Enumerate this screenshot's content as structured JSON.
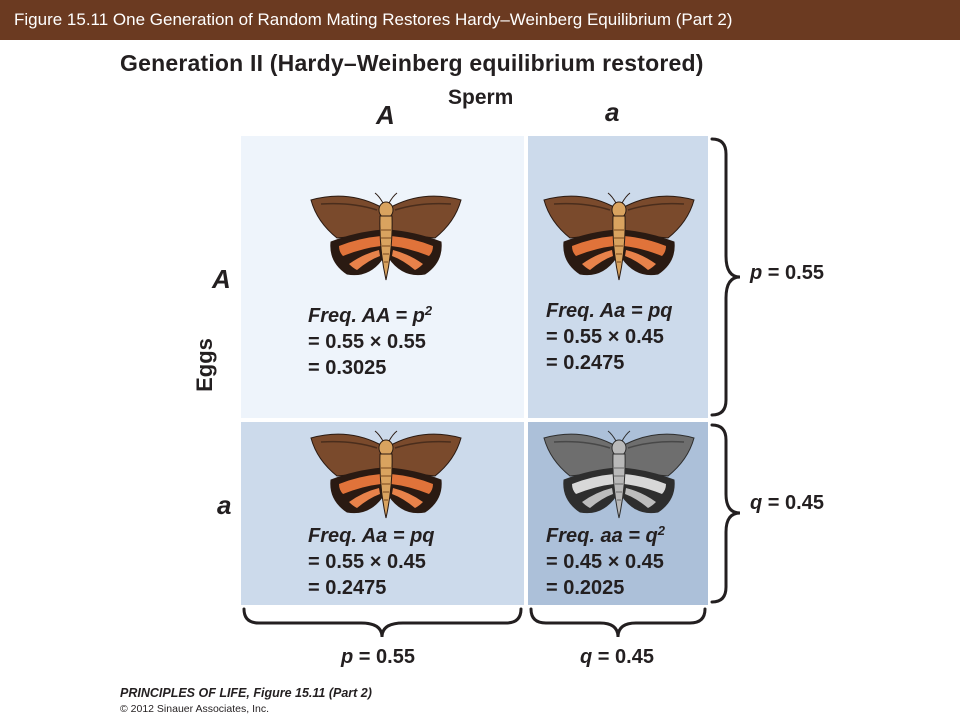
{
  "header": {
    "title": "Figure 15.11  One Generation of Random Mating Restores Hardy–Weinberg Equilibrium (Part 2)"
  },
  "figure": {
    "heading": "Generation II (Hardy–Weinberg equilibrium restored)",
    "sperm_label": "Sperm",
    "eggs_label": "Eggs",
    "sperm_alleles": [
      "A",
      "a"
    ],
    "egg_alleles": [
      "A",
      "a"
    ],
    "cells": [
      {
        "id": "AA",
        "line1_label": "Freq. AA = p",
        "line1_sup": "2",
        "line2": "= 0.55 × 0.55",
        "line3": "= 0.3025",
        "moth_color": "orange"
      },
      {
        "id": "Aa-top",
        "line1_label": "Freq. Aa = pq",
        "line1_sup": "",
        "line2": "= 0.55 × 0.45",
        "line3": "= 0.2475",
        "moth_color": "orange"
      },
      {
        "id": "Aa-bottom",
        "line1_label": "Freq. Aa = pq",
        "line1_sup": "",
        "line2": "= 0.55 × 0.45",
        "line3": "= 0.2475",
        "moth_color": "orange"
      },
      {
        "id": "aa",
        "line1_label": "Freq. aa = q",
        "line1_sup": "2",
        "line2": "= 0.45 × 0.45",
        "line3": "= 0.2025",
        "moth_color": "gray"
      }
    ],
    "freq_labels": {
      "right_top": {
        "var": "p",
        "value": " = 0.55"
      },
      "right_bottom": {
        "var": "q",
        "value": " = 0.45"
      },
      "bottom_left": {
        "var": "p",
        "value": " = 0.55"
      },
      "bottom_right": {
        "var": "q",
        "value": " = 0.45"
      }
    },
    "colors": {
      "header_bg": "#6b3a21",
      "cell_AA": "#eef4fb",
      "cell_Aa": "#ccdaeb",
      "cell_aa": "#acc0d9"
    }
  },
  "footer": {
    "line1": "PRINCIPLES OF LIFE, Figure 15.11 (Part 2)",
    "line2": "© 2012 Sinauer Associates, Inc."
  }
}
